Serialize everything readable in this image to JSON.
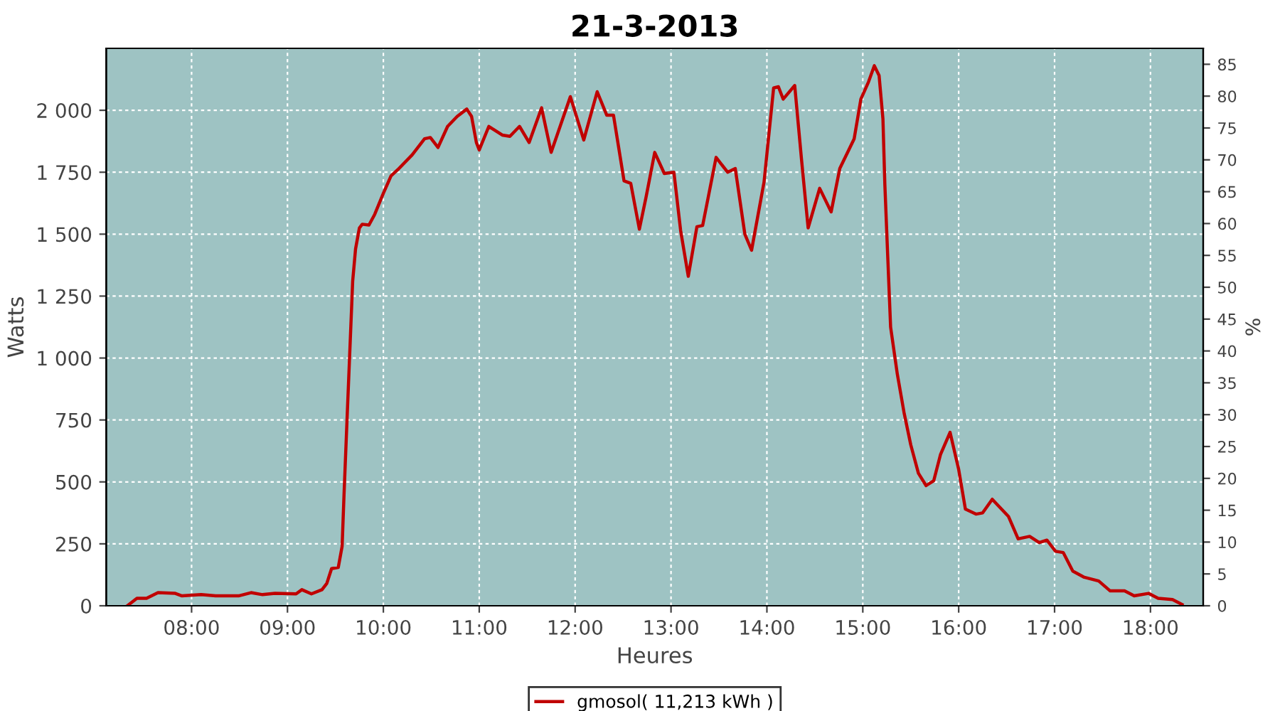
{
  "chart_data": {
    "type": "line",
    "title": "21-3-2013",
    "xlabel": "Heures",
    "ylabel": "Watts",
    "y2label": "%",
    "xlim": [
      7.11,
      18.55
    ],
    "xticks": [
      {
        "value": 8,
        "label": "08:00"
      },
      {
        "value": 9,
        "label": "09:00"
      },
      {
        "value": 10,
        "label": "10:00"
      },
      {
        "value": 11,
        "label": "11:00"
      },
      {
        "value": 12,
        "label": "12:00"
      },
      {
        "value": 13,
        "label": "13:00"
      },
      {
        "value": 14,
        "label": "14:00"
      },
      {
        "value": 15,
        "label": "15:00"
      },
      {
        "value": 16,
        "label": "16:00"
      },
      {
        "value": 17,
        "label": "17:00"
      },
      {
        "value": 18,
        "label": "18:00"
      }
    ],
    "ylim": [
      0,
      2250
    ],
    "yticks": [
      0,
      250,
      500,
      750,
      {
        "value": 1000,
        "label": "1 000"
      },
      {
        "value": 1250,
        "label": "1 250"
      },
      {
        "value": 1500,
        "label": "1 500"
      },
      {
        "value": 1750,
        "label": "1 750"
      },
      {
        "value": 2000,
        "label": "2 000"
      }
    ],
    "y2lim": [
      0,
      87.5
    ],
    "y2ticks": [
      0,
      5,
      10,
      15,
      20,
      25,
      30,
      35,
      40,
      45,
      50,
      55,
      60,
      65,
      70,
      75,
      80,
      85
    ],
    "grid": true,
    "legend": "bottom",
    "marker": "none",
    "line_style": "solid",
    "series": [
      {
        "name": "gmosol( 11,213 kWh )",
        "color": "#c00000",
        "x": [
          7.33,
          7.43,
          7.53,
          7.65,
          7.83,
          7.9,
          8.1,
          8.25,
          8.49,
          8.62,
          8.74,
          8.87,
          9.09,
          9.15,
          9.25,
          9.36,
          9.41,
          9.46,
          9.53,
          9.57,
          9.59,
          9.62,
          9.65,
          9.68,
          9.71,
          9.75,
          9.78,
          9.85,
          9.91,
          10.0,
          10.08,
          10.15,
          10.3,
          10.43,
          10.49,
          10.57,
          10.67,
          10.77,
          10.87,
          10.92,
          10.97,
          11.0,
          11.1,
          11.24,
          11.32,
          11.42,
          11.52,
          11.65,
          11.75,
          11.95,
          12.09,
          12.23,
          12.33,
          12.4,
          12.51,
          12.58,
          12.67,
          12.74,
          12.83,
          12.93,
          13.03,
          13.1,
          13.18,
          13.27,
          13.33,
          13.47,
          13.59,
          13.67,
          13.77,
          13.84,
          13.97,
          14.07,
          14.12,
          14.17,
          14.29,
          14.36,
          14.43,
          14.55,
          14.67,
          14.76,
          14.91,
          14.98,
          15.06,
          15.12,
          15.17,
          15.21,
          15.23,
          15.26,
          15.29,
          15.36,
          15.43,
          15.5,
          15.58,
          15.66,
          15.74,
          15.81,
          15.91,
          16.0,
          16.07,
          16.18,
          16.25,
          16.35,
          16.52,
          16.62,
          16.74,
          16.84,
          16.92,
          17.01,
          17.09,
          17.19,
          17.31,
          17.46,
          17.58,
          17.73,
          17.83,
          17.98,
          18.08,
          18.23,
          18.33
        ],
        "values": [
          0,
          30,
          30,
          53,
          50,
          40,
          45,
          40,
          40,
          53,
          45,
          50,
          48,
          65,
          48,
          65,
          90,
          150,
          155,
          240,
          450,
          740,
          1025,
          1310,
          1440,
          1525,
          1540,
          1537,
          1580,
          1665,
          1735,
          1760,
          1820,
          1885,
          1890,
          1850,
          1935,
          1975,
          2005,
          1975,
          1870,
          1840,
          1935,
          1900,
          1895,
          1935,
          1870,
          2010,
          1830,
          2055,
          1880,
          2075,
          1980,
          1980,
          1715,
          1705,
          1520,
          1650,
          1830,
          1745,
          1750,
          1515,
          1330,
          1530,
          1535,
          1810,
          1750,
          1765,
          1500,
          1435,
          1710,
          2090,
          2095,
          2045,
          2100,
          1805,
          1525,
          1685,
          1590,
          1765,
          1885,
          2045,
          2115,
          2180,
          2140,
          1965,
          1700,
          1410,
          1125,
          935,
          780,
          650,
          535,
          485,
          505,
          610,
          700,
          550,
          390,
          370,
          375,
          430,
          360,
          270,
          280,
          255,
          265,
          220,
          215,
          140,
          115,
          100,
          60,
          60,
          40,
          50,
          30,
          25,
          5
        ]
      }
    ]
  }
}
